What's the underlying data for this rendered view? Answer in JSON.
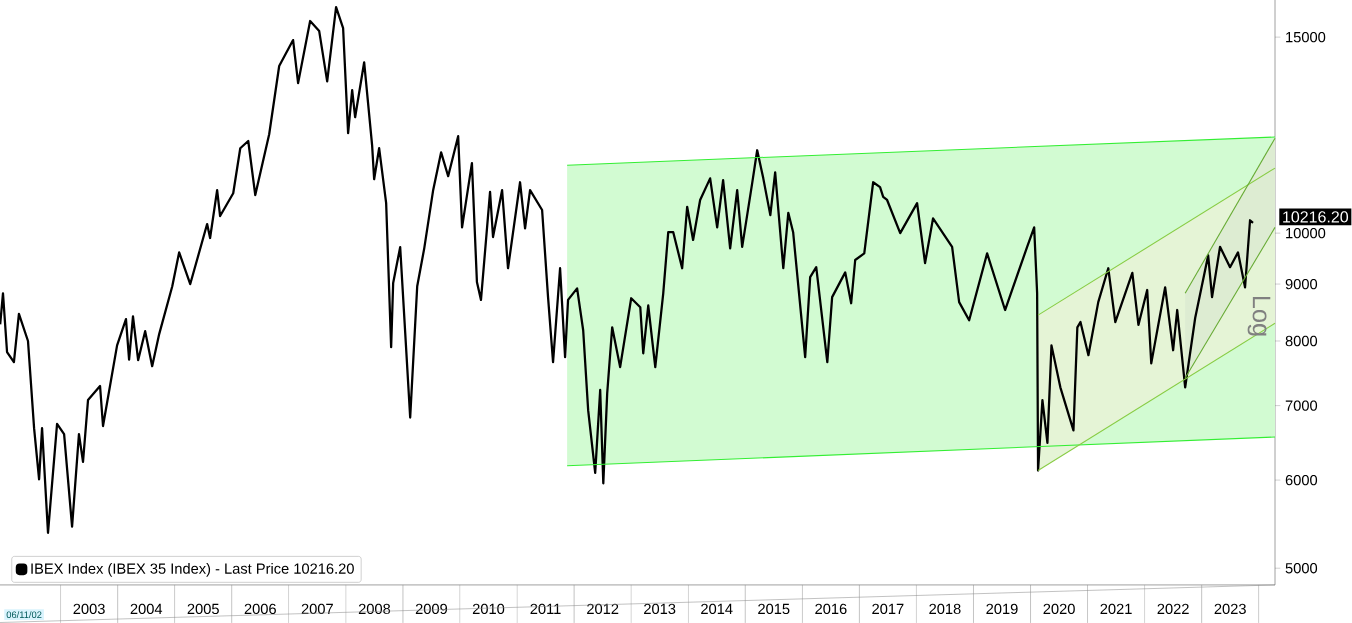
{
  "chart_data": {
    "type": "line",
    "ylabel": "Log",
    "log": "y",
    "legend": "bottom left",
    "xlim": [
      "2001-12-09",
      "2024-04-14"
    ],
    "ylim": [
      4830,
      16200
    ],
    "yticks": [
      5000,
      6000,
      7000,
      8000,
      9000,
      10000,
      15000
    ],
    "xticks": [
      {
        "value": "2003-07-02",
        "label": "2003"
      },
      {
        "value": "2004-07-02",
        "label": "2004"
      },
      {
        "value": "2005-07-02",
        "label": "2005"
      },
      {
        "value": "2006-07-02",
        "label": "2006"
      },
      {
        "value": "2007-07-02",
        "label": "2007"
      },
      {
        "value": "2008-07-02",
        "label": "2008"
      },
      {
        "value": "2009-07-02",
        "label": "2009"
      },
      {
        "value": "2010-07-02",
        "label": "2010"
      },
      {
        "value": "2011-07-02",
        "label": "2011"
      },
      {
        "value": "2012-07-02",
        "label": "2012"
      },
      {
        "value": "2013-07-02",
        "label": "2013"
      },
      {
        "value": "2014-07-02",
        "label": "2014"
      },
      {
        "value": "2015-07-02",
        "label": "2015"
      },
      {
        "value": "2016-07-02",
        "label": "2016"
      },
      {
        "value": "2017-07-02",
        "label": "2017"
      },
      {
        "value": "2018-07-02",
        "label": "2018"
      },
      {
        "value": "2019-07-02",
        "label": "2019"
      },
      {
        "value": "2020-07-02",
        "label": "2020"
      },
      {
        "value": "2021-07-02",
        "label": "2021"
      },
      {
        "value": "2022-07-02",
        "label": "2022"
      },
      {
        "value": "2023-07-02",
        "label": "2023"
      }
    ],
    "annotations": [
      "06/11/02",
      {
        "text": "10216.20",
        "x": "2023-11-25",
        "y": 10216.2
      }
    ],
    "x": [
      "2001-12-10",
      "2001-12-28",
      "2002-01-23",
      "2002-03-08",
      "2002-04-09",
      "2002-06-06",
      "2002-07-15",
      "2002-08-16",
      "2002-09-04",
      "2002-10-12",
      "2002-12-09",
      "2003-01-23",
      "2003-03-15",
      "2003-04-28",
      "2003-05-24",
      "2003-06-25",
      "2003-09-10",
      "2003-09-29",
      "2003-12-28",
      "2004-02-23",
      "2004-03-14",
      "2004-04-08",
      "2004-05-11",
      "2004-06-25",
      "2004-08-09",
      "2004-09-23",
      "2004-12-16",
      "2005-01-29",
      "2005-04-10",
      "2005-07-27",
      "2005-08-15",
      "2005-09-29",
      "2005-10-18",
      "2006-01-10",
      "2006-02-24",
      "2006-04-16",
      "2006-05-31",
      "2006-08-28",
      "2006-10-31",
      "2007-01-28",
      "2007-03-01",
      "2007-05-17",
      "2007-07-14",
      "2007-09-03",
      "2007-10-30",
      "2007-12-14",
      "2008-01-15",
      "2008-02-10",
      "2008-02-29",
      "2008-04-27",
      "2008-06-17",
      "2008-06-30",
      "2008-08-01",
      "2008-09-15",
      "2008-10-17",
      "2008-10-30",
      "2008-12-14",
      "2009-02-16",
      "2009-04-02",
      "2009-05-17",
      "2009-07-13",
      "2009-09-02",
      "2009-10-17",
      "2009-12-20",
      "2010-01-14",
      "2010-03-18",
      "2010-04-19",
      "2010-05-15",
      "2010-07-12",
      "2010-07-31",
      "2010-09-27",
      "2010-11-04",
      "2011-01-20",
      "2011-02-21",
      "2011-03-25",
      "2011-06-10",
      "2011-07-18",
      "2011-08-19",
      "2011-10-03",
      "2011-11-04",
      "2011-11-23",
      "2012-01-20",
      "2012-02-28",
      "2012-03-31",
      "2012-05-15",
      "2012-06-16",
      "2012-07-06",
      "2012-07-31",
      "2012-09-01",
      "2012-10-22",
      "2013-01-01",
      "2013-02-28",
      "2013-03-19",
      "2013-04-20",
      "2013-06-04",
      "2013-07-25",
      "2013-08-26",
      "2013-09-27",
      "2013-11-23",
      "2013-12-25",
      "2014-02-01",
      "2014-03-18",
      "2014-05-21",
      "2014-07-05",
      "2014-08-12",
      "2014-09-26",
      "2014-11-10",
      "2014-12-12",
      "2015-02-14",
      "2015-03-18",
      "2015-04-26",
      "2015-06-10",
      "2015-07-11",
      "2015-09-01",
      "2015-10-03",
      "2015-11-03",
      "2016-01-19",
      "2016-02-20",
      "2016-03-30",
      "2016-06-09",
      "2016-07-10",
      "2016-10-02",
      "2016-11-09",
      "2016-12-05",
      "2017-02-01",
      "2017-03-30",
      "2017-05-13",
      "2017-06-02",
      "2017-06-27",
      "2017-09-19",
      "2018-01-05",
      "2018-02-25",
      "2018-04-17",
      "2018-08-17",
      "2018-10-01",
      "2018-12-04",
      "2019-03-29",
      "2019-07-22",
      "2019-12-10",
      "2020-01-24",
      "2020-02-12",
      "2020-02-18",
      "2020-03-17",
      "2020-04-18",
      "2020-05-14",
      "2020-07-10",
      "2020-10-02",
      "2020-10-27",
      "2020-11-16",
      "2021-01-06",
      "2021-03-10",
      "2021-05-13",
      "2021-06-27",
      "2021-10-14",
      "2021-11-22",
      "2022-01-17",
      "2022-02-12",
      "2022-05-12",
      "2022-07-02",
      "2022-07-28",
      "2022-09-17",
      "2022-11-20",
      "2023-02-11",
      "2023-03-08",
      "2023-04-28",
      "2023-07-01",
      "2023-08-21",
      "2023-10-05",
      "2023-11-06",
      "2023-11-25"
    ],
    "series": [
      {
        "name": "IBEX Index (IBEX 35 Index) - Last Price 10216.20",
        "color": "#000000",
        "values": [
          8280,
          8830,
          7820,
          7660,
          8460,
          8000,
          6680,
          6010,
          6680,
          5380,
          6740,
          6600,
          5450,
          6600,
          6230,
          7080,
          7290,
          6710,
          7930,
          8370,
          7700,
          8420,
          7690,
          8165,
          7595,
          8115,
          8960,
          9610,
          9000,
          10190,
          9900,
          10930,
          10360,
          10860,
          11920,
          12100,
          10820,
          12270,
          14130,
          14910,
          13640,
          15510,
          15190,
          13690,
          15960,
          15280,
          12300,
          13440,
          12710,
          14240,
          11990,
          11180,
          11920,
          10640,
          7900,
          9020,
          9715,
          6830,
          8960,
          9690,
          10930,
          11820,
          11250,
          12220,
          10120,
          11560,
          9040,
          8710,
          10890,
          9920,
          10930,
          9300,
          11110,
          10100,
          10930,
          10490,
          8760,
          7660,
          9300,
          7740,
          8710,
          8920,
          8180,
          6930,
          6090,
          7230,
          5960,
          7180,
          8230,
          7580,
          8740,
          8580,
          7800,
          8610,
          7580,
          8830,
          10020,
          10020,
          9300,
          10560,
          9860,
          10710,
          11200,
          10120,
          11160,
          9690,
          10930,
          9720,
          11090,
          11870,
          11200,
          10380,
          11340,
          9300,
          10430,
          10020,
          7740,
          9130,
          9320,
          7660,
          8760,
          9220,
          8650,
          9460,
          9590,
          11110,
          11000,
          10780,
          10710,
          10000,
          10640,
          9400,
          10310,
          9720,
          8670,
          8350,
          9590,
          8530,
          9720,
          10120,
          8830,
          6120,
          7080,
          6480,
          7930,
          7270,
          6650,
          8230,
          8320,
          7770,
          8670,
          9300,
          8320,
          9210,
          8270,
          8890,
          7640,
          8940,
          7850,
          8530,
          7270,
          8390,
          9550,
          8760,
          9720,
          9320,
          9610,
          8940,
          10270,
          10216.2
        ]
      },
      {
        "type": "line",
        "x": [
          "2011-11-17",
          "2024-04-14"
        ],
        "values": [
          null,
          null
        ],
        "lower": [
          6180,
          6560
        ],
        "upper": [
          11510,
          12200
        ],
        "color": "#33ee33"
      },
      {
        "type": "line",
        "x": [
          "2020-02-18",
          "2024-04-14"
        ],
        "values": [
          null,
          null
        ],
        "lower": [
          6120,
          8300
        ],
        "upper": [
          8440,
          11440
        ],
        "color": "#88cc44"
      },
      {
        "type": "line",
        "x": [
          "2022-09-17",
          "2024-04-14"
        ],
        "values": [
          null,
          null
        ],
        "lower": [
          7410,
          10120
        ],
        "upper": [
          8830,
          12170
        ],
        "color": "#66aa33"
      },
      {
        "type": "line",
        "x": [
          "2011-11-17",
          "2024-04-14"
        ],
        "values": [
          6180,
          6560
        ],
        "color": "#33ee33"
      },
      {
        "type": "line",
        "x": [
          "2011-11-17",
          "2024-04-14"
        ],
        "values": [
          11510,
          12200
        ],
        "color": "#33ee33"
      },
      {
        "type": "line",
        "x": [
          "2020-02-18",
          "2024-04-14"
        ],
        "values": [
          6120,
          8300
        ],
        "color": "#88cc44"
      },
      {
        "type": "line",
        "x": [
          "2020-02-18",
          "2024-04-14"
        ],
        "values": [
          8440,
          11440
        ],
        "color": "#88cc44"
      },
      {
        "type": "line",
        "x": [
          "2022-09-17",
          "2024-04-14"
        ],
        "values": [
          7410,
          10120
        ],
        "color": "#66aa33"
      },
      {
        "type": "line",
        "x": [
          "2022-09-17",
          "2024-04-14"
        ],
        "values": [
          8830,
          12170
        ],
        "color": "#66aa33"
      }
    ]
  }
}
